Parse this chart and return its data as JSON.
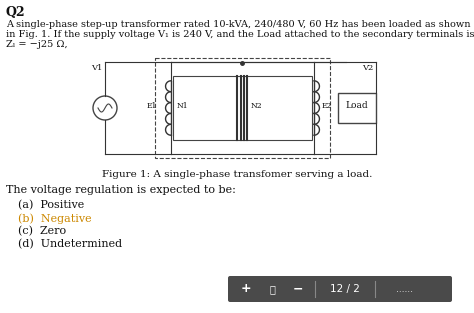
{
  "title": "Q2",
  "para1": "A single-phase step-up transformer rated 10-kVA, 240/480 V, 60 Hz has been loaded as shown",
  "para2": "in Fig. 1. If the supply voltage V₁ is 240 V, and the Load attached to the secondary terminals is",
  "para3": "Zₗ = −j25 Ω,",
  "figure_caption": "Figure 1: A single-phase transfomer serving a load.",
  "question_text": "The voltage regulation is expected to be:",
  "options": [
    {
      "label": "(a)  Positive",
      "color": "#111111",
      "bold": false
    },
    {
      "label": "(b)  Negative",
      "color": "#cc8800",
      "bold": false
    },
    {
      "label": "(c)  Zero",
      "color": "#111111",
      "bold": false
    },
    {
      "label": "(d)  Undetermined",
      "color": "#111111",
      "bold": false
    }
  ],
  "bg_color": "#ffffff",
  "toolbar_color": "#4a4a4a",
  "toolbar_text": "12 / 2"
}
